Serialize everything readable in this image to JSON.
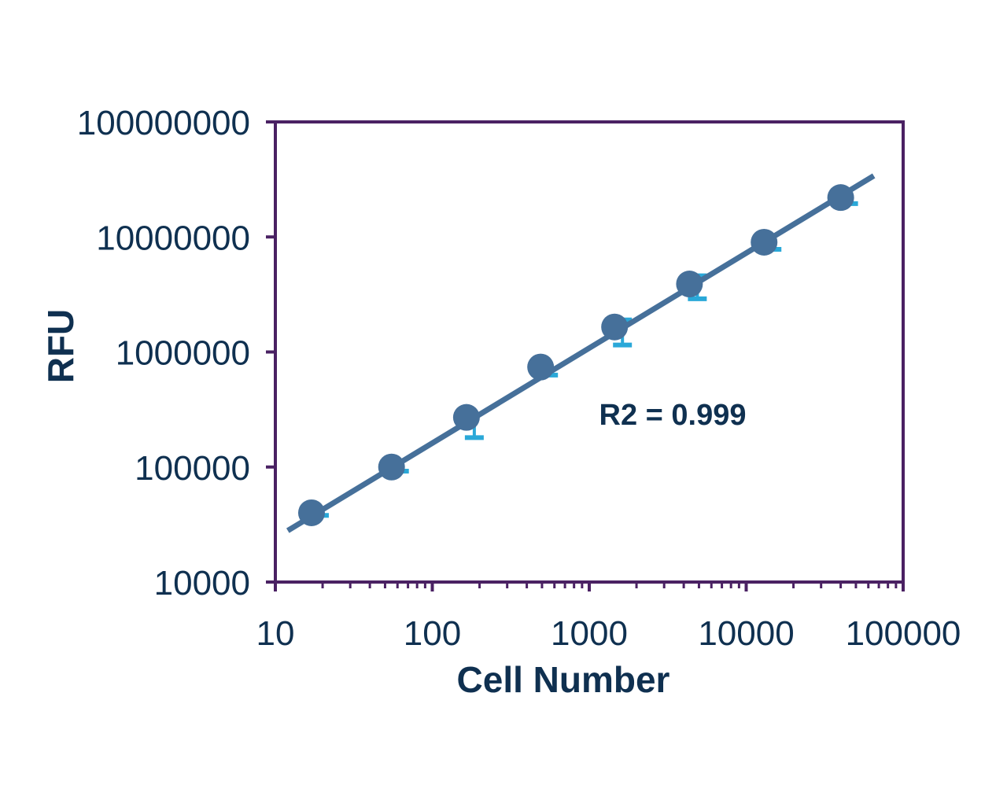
{
  "chart_data": {
    "type": "scatter",
    "xlabel": "Cell Number",
    "ylabel": "RFU",
    "x_scale": "log",
    "y_scale": "log",
    "xlim": [
      10,
      100000
    ],
    "ylim": [
      10000,
      100000000
    ],
    "x_tick_labels": [
      "10",
      "100",
      "1000",
      "10000",
      "100000"
    ],
    "y_tick_labels": [
      "10000",
      "100000",
      "1000000",
      "10000000",
      "100000000"
    ],
    "grid": false,
    "legend": "none",
    "annotation": "R2 = 0.999",
    "series": [
      {
        "x": [
          17,
          55,
          165,
          490,
          1450,
          4350,
          13000,
          40000
        ],
        "y": [
          40000,
          100000,
          270000,
          740000,
          1650000,
          3900000,
          9000000,
          22000000
        ],
        "error_upper": [
          0,
          0,
          0,
          0,
          1900000,
          4600000,
          0,
          0
        ],
        "error_lower": [
          38000,
          92000,
          180000,
          630000,
          1150000,
          2900000,
          7800000,
          19500000
        ]
      }
    ],
    "trendline": {
      "x": [
        12,
        65000
      ],
      "y": [
        28000,
        34000000
      ]
    },
    "colors": {
      "axis": "#4a2163",
      "point": "#46709a",
      "line": "#46709a",
      "error": "#2aa8d8",
      "text": "#0f3050"
    }
  }
}
